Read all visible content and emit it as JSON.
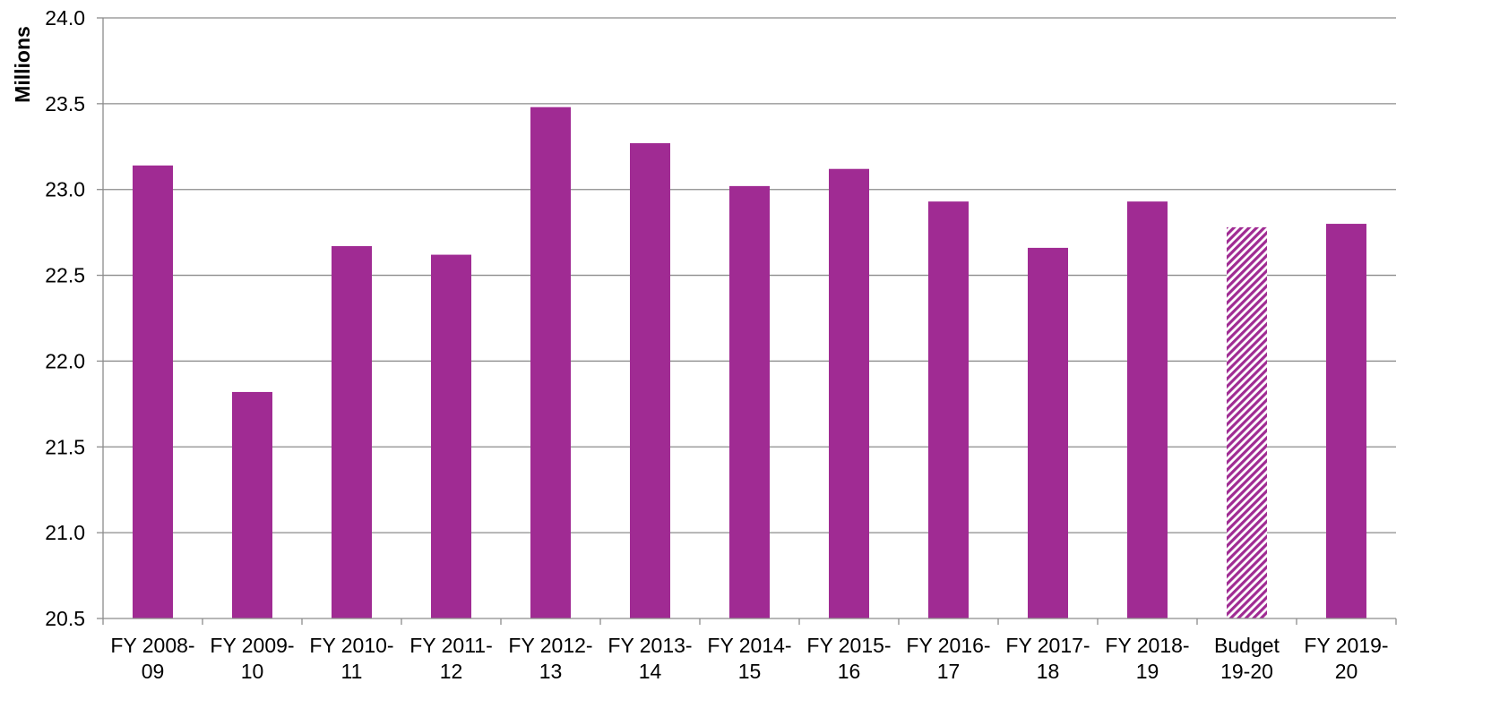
{
  "chart_data": {
    "type": "bar",
    "title": "",
    "xlabel": "",
    "ylabel": "Millions",
    "ylim": [
      20.5,
      24.0
    ],
    "yticks": [
      "20.5",
      "21.0",
      "21.5",
      "22.0",
      "22.5",
      "23.0",
      "23.5",
      "24.0"
    ],
    "grid": true,
    "legend": "none",
    "categories": [
      [
        "FY 2008-",
        "09"
      ],
      [
        "FY 2009-",
        "10"
      ],
      [
        "FY 2010-",
        "11"
      ],
      [
        "FY 2011-",
        "12"
      ],
      [
        "FY 2012-",
        "13"
      ],
      [
        "FY 2013-",
        "14"
      ],
      [
        "FY 2014-",
        "15"
      ],
      [
        "FY 2015-",
        "16"
      ],
      [
        "FY 2016-",
        "17"
      ],
      [
        "FY 2017-",
        "18"
      ],
      [
        "FY 2018-",
        "19"
      ],
      [
        "Budget",
        "19-20"
      ],
      [
        "FY 2019-",
        "20"
      ]
    ],
    "values": [
      23.14,
      21.82,
      22.67,
      22.62,
      23.48,
      23.27,
      23.02,
      23.12,
      22.93,
      22.66,
      22.93,
      22.78,
      22.8
    ],
    "hatched": [
      false,
      false,
      false,
      false,
      false,
      false,
      false,
      false,
      false,
      false,
      false,
      true,
      false
    ],
    "colors": {
      "bar": "#A02B93",
      "grid": "#8C8C8C",
      "axis": "#8C8C8C"
    }
  }
}
